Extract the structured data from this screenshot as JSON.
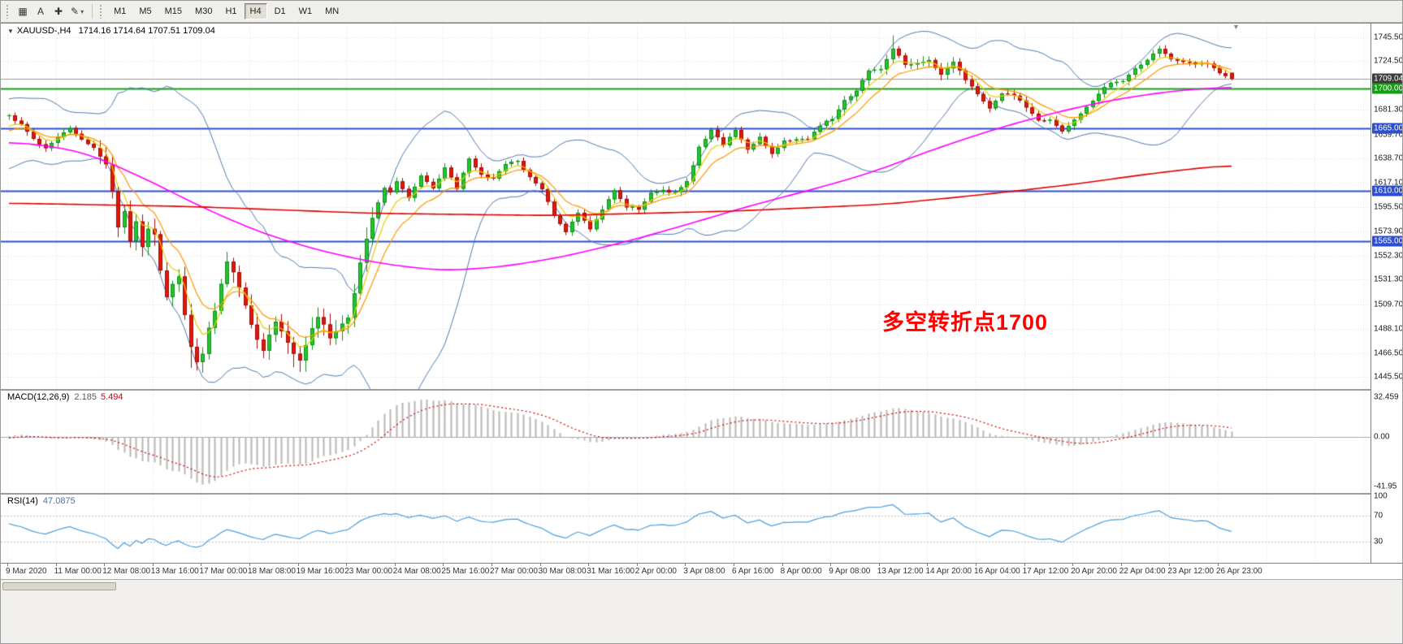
{
  "toolbar": {
    "icons": [
      {
        "name": "chart-window-icon",
        "glyph": "▦"
      },
      {
        "name": "text-tool-icon",
        "glyph": "A"
      },
      {
        "name": "crosshair-icon",
        "glyph": "✚"
      },
      {
        "name": "draw-tools-icon",
        "glyph": "✎",
        "caret": true
      }
    ],
    "timeframes": [
      "M1",
      "M5",
      "M15",
      "M30",
      "H1",
      "H4",
      "D1",
      "W1",
      "MN"
    ],
    "active_timeframe": "H4"
  },
  "chart": {
    "symbol_title": "XAUUSD-,H4",
    "ohlc": "1714.16 1714.64 1707.51 1709.04",
    "annotation": "多空转折点1700"
  },
  "indicators": {
    "macd_label": "MACD(12,26,9)",
    "macd_value_1": "2.185",
    "macd_value_2": "5.494",
    "rsi_label": "RSI(14)",
    "rsi_value": "47.0875"
  },
  "chart_data": {
    "type": "candlestick",
    "symbol": "XAUUSD",
    "period": "H4",
    "ohlc_current": {
      "open": 1714.16,
      "high": 1714.64,
      "low": 1707.51,
      "close": 1709.04
    },
    "candle_count": 203,
    "candles_per_label": 8,
    "y_ticks": [
      "1745.50",
      "1724.50",
      "1681.30",
      "1659.70",
      "1638.70",
      "1617.10",
      "1595.50",
      "1573.90",
      "1552.30",
      "1531.30",
      "1509.70",
      "1488.10",
      "1466.50",
      "1445.50"
    ],
    "x_labels": [
      "9 Mar 2020",
      "11 Mar 00:00",
      "12 Mar 08:00",
      "13 Mar 16:00",
      "17 Mar 00:00",
      "18 Mar 08:00",
      "19 Mar 16:00",
      "23 Mar 00:00",
      "24 Mar 08:00",
      "25 Mar 16:00",
      "27 Mar 00:00",
      "30 Mar 08:00",
      "31 Mar 16:00",
      "2 Apr 00:00",
      "3 Apr 08:00",
      "6 Apr 16:00",
      "8 Apr 00:00",
      "9 Apr 08:00",
      "13 Apr 12:00",
      "14 Apr 20:00",
      "16 Apr 04:00",
      "17 Apr 12:00",
      "20 Apr 20:00",
      "22 Apr 04:00",
      "23 Apr 12:00",
      "26 Apr 23:00"
    ],
    "hlines": [
      {
        "name": "current-price",
        "price": 1709.04,
        "label": "1709.04",
        "color": "#9b9b9b",
        "width": 1,
        "badge": "#3b3b3b"
      },
      {
        "name": "level-1700",
        "price": 1700.0,
        "label": "1700.00",
        "color": "#12a112",
        "width": 2,
        "badge": "#12a112"
      },
      {
        "name": "level-1665",
        "price": 1665.0,
        "label": "1665.00",
        "color": "#2d4ed0",
        "width": 2,
        "badge": "#2d4ed0"
      },
      {
        "name": "level-1610",
        "price": 1610.0,
        "label": "1610.00",
        "color": "#2d4ed0",
        "width": 2,
        "badge": "#2d4ed0"
      },
      {
        "name": "level-1565",
        "price": 1565.0,
        "label": "1565.00",
        "color": "#2d4ed0",
        "width": 2,
        "badge": "#2d4ed0"
      }
    ],
    "close_waypoints": [
      [
        0,
        1676
      ],
      [
        2,
        1668
      ],
      [
        4,
        1655
      ],
      [
        6,
        1648
      ],
      [
        8,
        1658
      ],
      [
        10,
        1666
      ],
      [
        12,
        1656
      ],
      [
        14,
        1648
      ],
      [
        16,
        1634
      ],
      [
        17,
        1610
      ],
      [
        18,
        1578
      ],
      [
        19,
        1592
      ],
      [
        20,
        1566
      ],
      [
        21,
        1582
      ],
      [
        22,
        1560
      ],
      [
        23,
        1576
      ],
      [
        24,
        1572
      ],
      [
        25,
        1540
      ],
      [
        26,
        1516
      ],
      [
        27,
        1528
      ],
      [
        28,
        1534
      ],
      [
        29,
        1500
      ],
      [
        30,
        1472
      ],
      [
        31,
        1458
      ],
      [
        32,
        1466
      ],
      [
        33,
        1488
      ],
      [
        34,
        1504
      ],
      [
        35,
        1528
      ],
      [
        36,
        1548
      ],
      [
        37,
        1538
      ],
      [
        38,
        1524
      ],
      [
        39,
        1508
      ],
      [
        40,
        1492
      ],
      [
        41,
        1478
      ],
      [
        42,
        1468
      ],
      [
        43,
        1482
      ],
      [
        44,
        1494
      ],
      [
        45,
        1486
      ],
      [
        46,
        1476
      ],
      [
        47,
        1466
      ],
      [
        48,
        1460
      ],
      [
        49,
        1474
      ],
      [
        50,
        1488
      ],
      [
        51,
        1498
      ],
      [
        52,
        1492
      ],
      [
        53,
        1480
      ],
      [
        54,
        1486
      ],
      [
        55,
        1492
      ],
      [
        56,
        1498
      ],
      [
        57,
        1520
      ],
      [
        58,
        1546
      ],
      [
        59,
        1568
      ],
      [
        60,
        1586
      ],
      [
        61,
        1600
      ],
      [
        62,
        1612
      ],
      [
        63,
        1608
      ],
      [
        64,
        1618
      ],
      [
        66,
        1604
      ],
      [
        68,
        1624
      ],
      [
        70,
        1612
      ],
      [
        72,
        1630
      ],
      [
        74,
        1612
      ],
      [
        76,
        1638
      ],
      [
        78,
        1624
      ],
      [
        80,
        1620
      ],
      [
        82,
        1634
      ],
      [
        84,
        1636
      ],
      [
        86,
        1622
      ],
      [
        88,
        1612
      ],
      [
        89,
        1600
      ],
      [
        90,
        1588
      ],
      [
        92,
        1574
      ],
      [
        94,
        1590
      ],
      [
        96,
        1576
      ],
      [
        98,
        1594
      ],
      [
        100,
        1610
      ],
      [
        102,
        1596
      ],
      [
        104,
        1594
      ],
      [
        106,
        1608
      ],
      [
        108,
        1610
      ],
      [
        110,
        1608
      ],
      [
        112,
        1618
      ],
      [
        113,
        1632
      ],
      [
        114,
        1648
      ],
      [
        116,
        1664
      ],
      [
        118,
        1650
      ],
      [
        120,
        1664
      ],
      [
        122,
        1646
      ],
      [
        124,
        1658
      ],
      [
        126,
        1642
      ],
      [
        128,
        1654
      ],
      [
        130,
        1656
      ],
      [
        132,
        1656
      ],
      [
        134,
        1668
      ],
      [
        136,
        1674
      ],
      [
        138,
        1690
      ],
      [
        140,
        1698
      ],
      [
        142,
        1716
      ],
      [
        144,
        1718
      ],
      [
        146,
        1736
      ],
      [
        148,
        1722
      ],
      [
        150,
        1722
      ],
      [
        152,
        1726
      ],
      [
        154,
        1712
      ],
      [
        156,
        1724
      ],
      [
        158,
        1708
      ],
      [
        160,
        1696
      ],
      [
        162,
        1682
      ],
      [
        164,
        1696
      ],
      [
        166,
        1694
      ],
      [
        168,
        1684
      ],
      [
        170,
        1672
      ],
      [
        172,
        1672
      ],
      [
        174,
        1662
      ],
      [
        176,
        1672
      ],
      [
        178,
        1684
      ],
      [
        180,
        1696
      ],
      [
        182,
        1706
      ],
      [
        184,
        1706
      ],
      [
        186,
        1718
      ],
      [
        188,
        1726
      ],
      [
        190,
        1736
      ],
      [
        192,
        1726
      ],
      [
        194,
        1724
      ],
      [
        196,
        1722
      ],
      [
        198,
        1722
      ],
      [
        200,
        1714
      ],
      [
        202,
        1709.04
      ]
    ],
    "spikes": [
      {
        "i": 30,
        "low": 1453.5
      },
      {
        "i": 31,
        "low": 1451.0
      },
      {
        "i": 47,
        "low": 1454.0
      },
      {
        "i": 146,
        "high": 1747.3
      }
    ],
    "overlays": {
      "red_ma": {
        "color": "#e00000",
        "width": 1.6,
        "waypoints": [
          [
            0,
            1599
          ],
          [
            30,
            1596
          ],
          [
            60,
            1590
          ],
          [
            90,
            1588
          ],
          [
            120,
            1592
          ],
          [
            145,
            1598
          ],
          [
            160,
            1606
          ],
          [
            175,
            1615
          ],
          [
            190,
            1626
          ],
          [
            202,
            1633
          ]
        ]
      },
      "magenta_ma": {
        "color": "#ff00ff",
        "width": 1.6,
        "waypoints": [
          [
            0,
            1654
          ],
          [
            12,
            1645
          ],
          [
            22,
            1622
          ],
          [
            32,
            1595
          ],
          [
            42,
            1572
          ],
          [
            52,
            1556
          ],
          [
            62,
            1545
          ],
          [
            72,
            1539
          ],
          [
            82,
            1543
          ],
          [
            92,
            1552
          ],
          [
            102,
            1565
          ],
          [
            112,
            1580
          ],
          [
            122,
            1596
          ],
          [
            132,
            1610
          ],
          [
            142,
            1625
          ],
          [
            152,
            1645
          ],
          [
            162,
            1663
          ],
          [
            172,
            1678
          ],
          [
            182,
            1690
          ],
          [
            192,
            1698
          ],
          [
            202,
            1702
          ]
        ]
      }
    },
    "styles": {
      "bull": "#22c52e",
      "bull_border": "#0d8f18",
      "bear": "#e3170d",
      "bear_border": "#9e0d05",
      "bb": "#4f7ab0",
      "yellow_ma": "#e8cc00",
      "orange_ma": "#ff9500",
      "macd_hist": "#b6b6b6",
      "macd_signal": "#d40000",
      "rsi": "#4a9fdc",
      "grid": "#dedede",
      "annotation": "#ff0000"
    },
    "macd_axis": {
      "ticks": [
        "32.459",
        "0.00",
        "-41.95"
      ],
      "range": [
        -45,
        36
      ],
      "pos_max": 32.459,
      "neg_min": -41.95
    },
    "rsi_axis": {
      "ticks": [
        "100",
        "70",
        "30"
      ],
      "levels": [
        70,
        30
      ],
      "range": [
        0,
        100
      ]
    }
  }
}
